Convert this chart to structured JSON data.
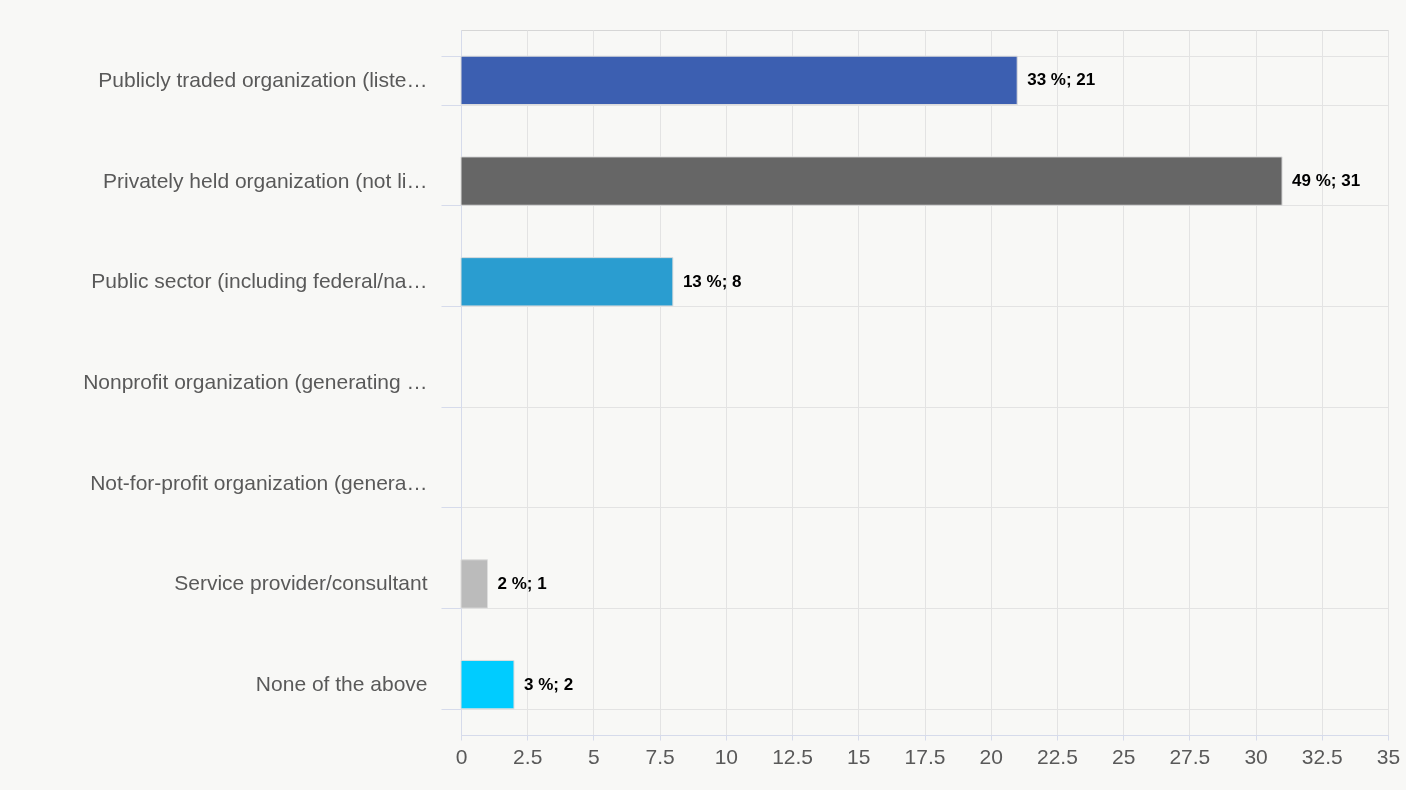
{
  "chart_data": {
    "type": "bar",
    "orientation": "horizontal",
    "categories": [
      "Publicly traded organization (liste…",
      "Privately held organization (not li…",
      "Public sector (including federal/na…",
      "Nonprofit organization (generating …",
      "Not-for-profit organization (genera…",
      "Service provider/consultant",
      "None of the above"
    ],
    "values": [
      21,
      31,
      8,
      null,
      null,
      1,
      2
    ],
    "colors": [
      "#3c5fb1",
      "#666666",
      "#2a9dd0",
      "#999999",
      "#999999",
      "#bbbbbb",
      "#00ccff"
    ],
    "value_labels": [
      "33 %; 21",
      "49 %; 31",
      "13 %; 8",
      null,
      null,
      "2 %; 1",
      "3 %; 2"
    ],
    "xlim": [
      0,
      35
    ],
    "xticks": [
      0,
      2.5,
      5,
      7.5,
      10,
      12.5,
      15,
      17.5,
      20,
      22.5,
      25,
      27.5,
      30,
      32.5,
      35
    ],
    "grid": true
  }
}
